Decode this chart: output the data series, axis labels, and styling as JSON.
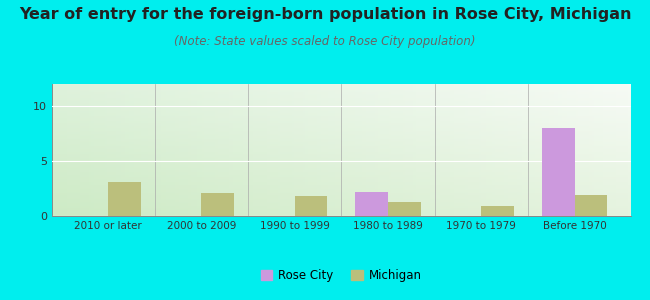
{
  "title": "Year of entry for the foreign-born population in Rose City, Michigan",
  "subtitle": "(Note: State values scaled to Rose City population)",
  "categories": [
    "2010 or later",
    "2000 to 2009",
    "1990 to 1999",
    "1980 to 1989",
    "1970 to 1979",
    "Before 1970"
  ],
  "rose_city_values": [
    0,
    0,
    0,
    2.2,
    0,
    8.0
  ],
  "michigan_values": [
    3.1,
    2.1,
    1.8,
    1.3,
    0.9,
    1.9
  ],
  "rose_city_color": "#cc99dd",
  "michigan_color": "#bbbf7c",
  "ylim": [
    0,
    12
  ],
  "yticks": [
    0,
    5,
    10
  ],
  "background_color": "#00eeee",
  "title_fontsize": 11.5,
  "subtitle_fontsize": 8.5,
  "bar_width": 0.35,
  "legend_labels": [
    "Rose City",
    "Michigan"
  ]
}
